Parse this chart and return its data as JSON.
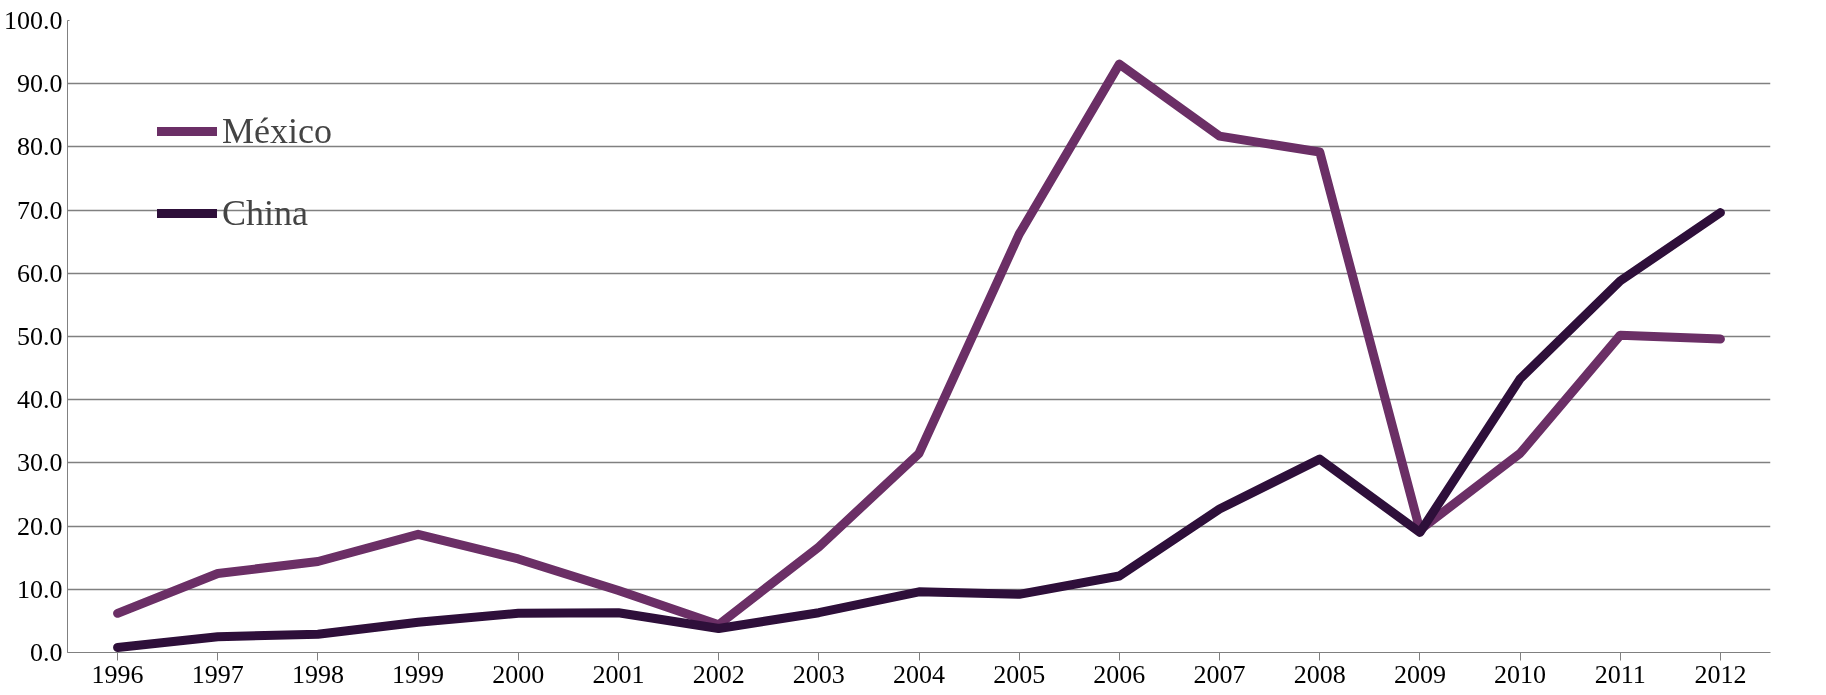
{
  "chart_data": {
    "type": "line",
    "categories": [
      "1996",
      "1997",
      "1998",
      "1999",
      "2000",
      "2001",
      "2002",
      "2003",
      "2004",
      "2005",
      "2006",
      "2007",
      "2008",
      "2009",
      "2010",
      "2011",
      "2012"
    ],
    "series": [
      {
        "name": "México",
        "color": "#6b2f66",
        "values": [
          6.2,
          12.5,
          14.4,
          18.7,
          14.8,
          9.8,
          4.4,
          16.7,
          31.5,
          66.2,
          93.1,
          81.7,
          79.2,
          19.4,
          31.5,
          50.2,
          49.6
        ]
      },
      {
        "name": "China",
        "color": "#2e0f3a",
        "values": [
          0.8,
          2.5,
          2.9,
          4.8,
          6.2,
          6.3,
          3.8,
          6.3,
          9.6,
          9.2,
          12.1,
          22.7,
          30.6,
          19.0,
          43.3,
          58.8,
          69.6
        ]
      }
    ],
    "ylim": [
      0,
      100
    ],
    "yticks": [
      {
        "value": 0,
        "label": "0.0"
      },
      {
        "value": 10,
        "label": "10.0"
      },
      {
        "value": 20,
        "label": "20.0"
      },
      {
        "value": 30,
        "label": "30.0"
      },
      {
        "value": 40,
        "label": "40.0"
      },
      {
        "value": 50,
        "label": "50.0"
      },
      {
        "value": 60,
        "label": "60.0"
      },
      {
        "value": 70,
        "label": "70.0"
      },
      {
        "value": 80,
        "label": "80.0"
      },
      {
        "value": 90,
        "label": "90.0"
      },
      {
        "value": 100,
        "label": "100.0"
      }
    ],
    "grid": "y",
    "legend": "top left",
    "marker": "none",
    "line_style": "solid"
  }
}
